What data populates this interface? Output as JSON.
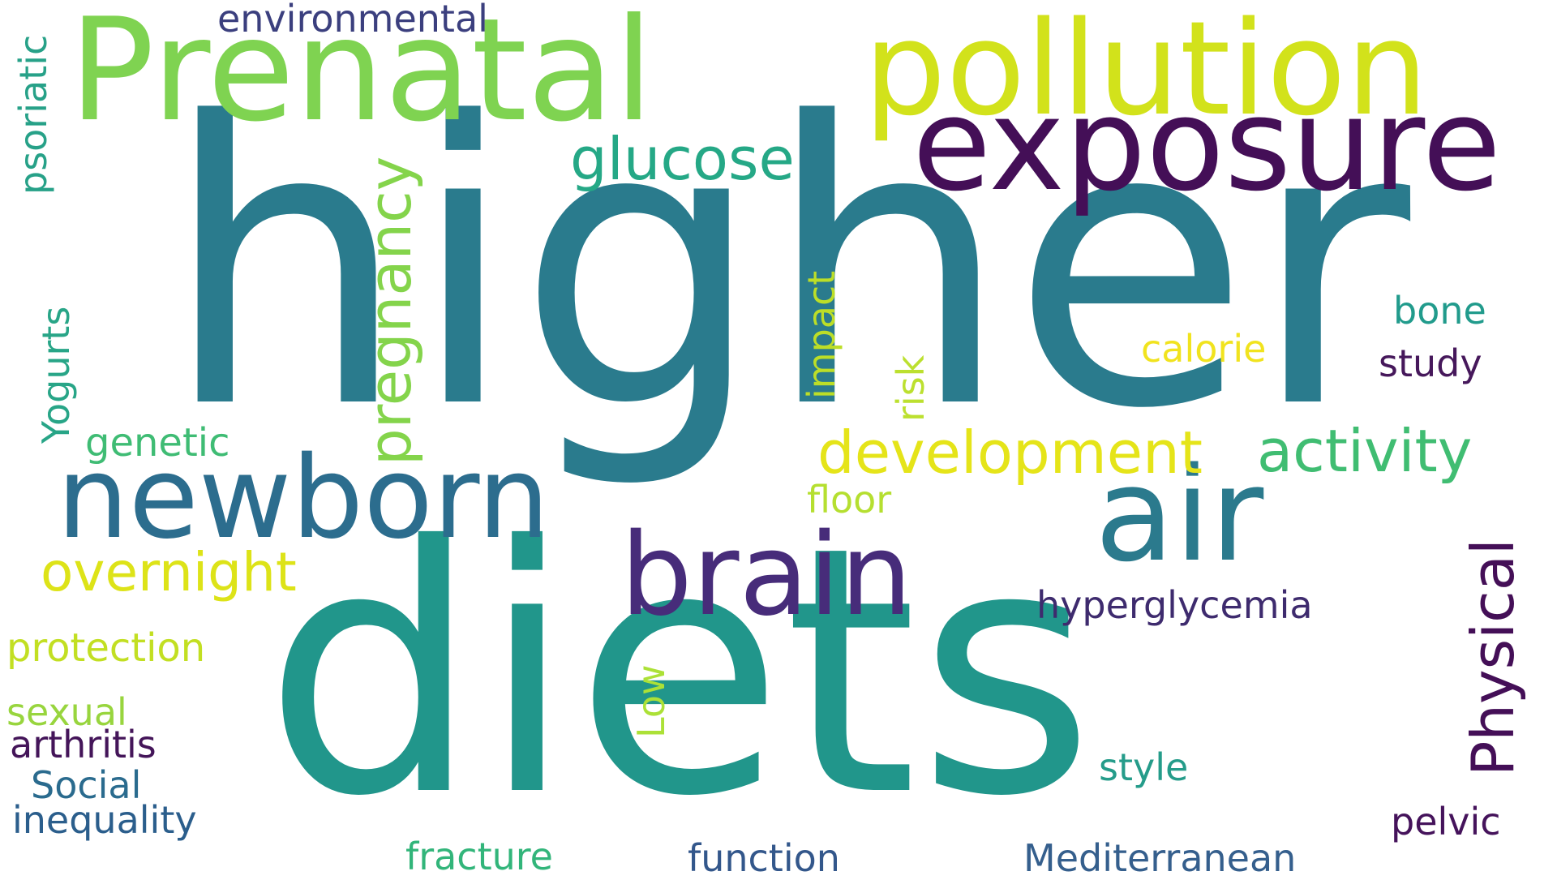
{
  "words": [
    {
      "text": "higher",
      "color": "#2a7b8d"
    },
    {
      "text": "diets",
      "color": "#21968b"
    },
    {
      "text": "Prenatal",
      "color": "#7fd351"
    },
    {
      "text": "pollution",
      "color": "#d2e21b"
    },
    {
      "text": "exposure",
      "color": "#440f57"
    },
    {
      "text": "newborn",
      "color": "#2c6d8e"
    },
    {
      "text": "air",
      "color": "#2b7a8d"
    },
    {
      "text": "brain",
      "color": "#472c7a"
    },
    {
      "text": "pregnancy",
      "color": "#84d44b"
    },
    {
      "text": "glucose",
      "color": "#25a886"
    },
    {
      "text": "development",
      "color": "#e5e419"
    },
    {
      "text": "activity",
      "color": "#40bd72"
    },
    {
      "text": "Physical",
      "color": "#440f57"
    },
    {
      "text": "overnight",
      "color": "#dde318"
    },
    {
      "text": "hyperglycemia",
      "color": "#3e2b6e"
    },
    {
      "text": "environmental",
      "color": "#3b3f7e"
    },
    {
      "text": "psoriatic",
      "color": "#27a188"
    },
    {
      "text": "Yogurts",
      "color": "#28a587"
    },
    {
      "text": "genetic",
      "color": "#3fbc74"
    },
    {
      "text": "impact",
      "color": "#bcde27"
    },
    {
      "text": "risk",
      "color": "#bce02f"
    },
    {
      "text": "calorie",
      "color": "#f1e31e"
    },
    {
      "text": "bone",
      "color": "#219b8c"
    },
    {
      "text": "study",
      "color": "#46185b"
    },
    {
      "text": "floor",
      "color": "#b5df30"
    },
    {
      "text": "protection",
      "color": "#c2df22"
    },
    {
      "text": "sexual",
      "color": "#98d53e"
    },
    {
      "text": "arthritis",
      "color": "#441559"
    },
    {
      "text": "Social",
      "color": "#2a6b8e"
    },
    {
      "text": "inequality",
      "color": "#2b5e8c"
    },
    {
      "text": "Low",
      "color": "#ace137"
    },
    {
      "text": "style",
      "color": "#259c8a"
    },
    {
      "text": "pelvic",
      "color": "#45135b"
    },
    {
      "text": "fracture",
      "color": "#32b57a"
    },
    {
      "text": "function",
      "color": "#33578b"
    },
    {
      "text": "Mediterranean",
      "color": "#355f8d"
    }
  ]
}
